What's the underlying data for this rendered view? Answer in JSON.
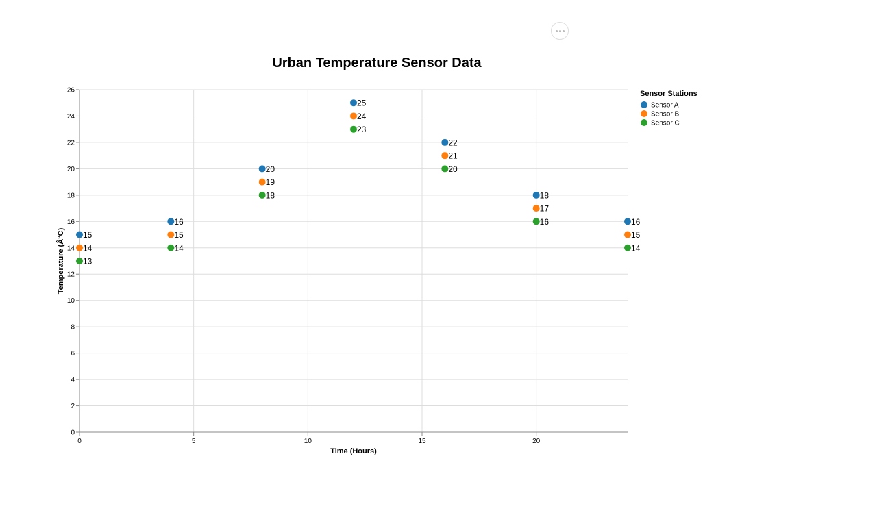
{
  "actions_menu": {
    "icon": "ellipsis-icon"
  },
  "chart_data": {
    "type": "scatter",
    "title": "Urban Temperature Sensor Data",
    "xlabel": "Time (Hours)",
    "ylabel": "Temperature (Â°C)",
    "xlim": [
      0,
      24
    ],
    "ylim": [
      0,
      26
    ],
    "x_ticks": [
      0,
      5,
      10,
      15,
      20
    ],
    "y_ticks": [
      0,
      2,
      4,
      6,
      8,
      10,
      12,
      14,
      16,
      18,
      20,
      22,
      24,
      26
    ],
    "grid": true,
    "legend": {
      "title": "Sensor Stations",
      "placement": "right"
    },
    "x": [
      0,
      4,
      8,
      12,
      16,
      20,
      24
    ],
    "series": [
      {
        "name": "Sensor A",
        "color": "#1f77b4",
        "values": [
          15,
          16,
          20,
          25,
          22,
          18,
          16
        ]
      },
      {
        "name": "Sensor B",
        "color": "#ff7f0e",
        "values": [
          14,
          15,
          19,
          24,
          21,
          17,
          15
        ]
      },
      {
        "name": "Sensor C",
        "color": "#2ca02c",
        "values": [
          13,
          14,
          18,
          23,
          20,
          16,
          14
        ]
      }
    ],
    "data_labels": true
  }
}
